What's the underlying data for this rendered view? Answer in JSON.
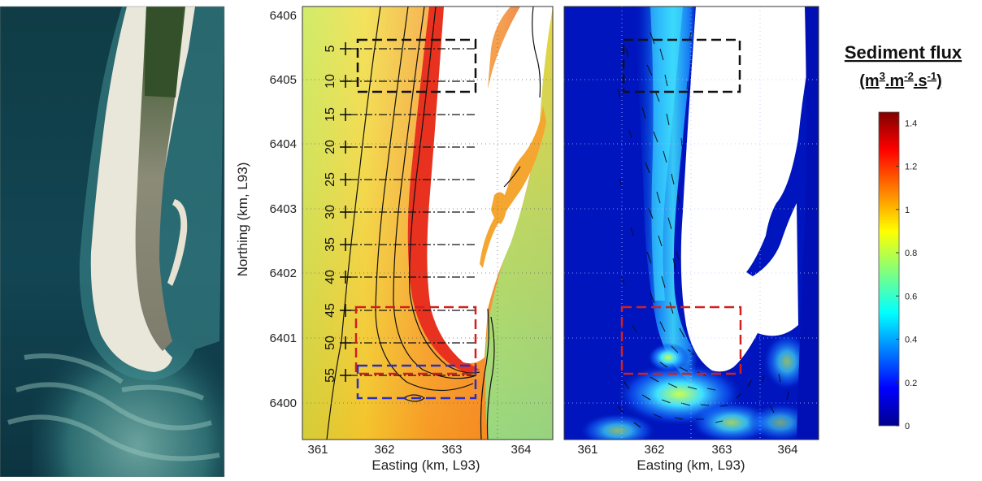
{
  "panels": {
    "axes": {
      "x_label": "Easting (km, L93)",
      "y_label": "Northing (km, L93)",
      "x_ticks": [
        "361",
        "362",
        "363",
        "364"
      ],
      "y_ticks": [
        "6400",
        "6401",
        "6402",
        "6403",
        "6404",
        "6405",
        "6406"
      ]
    },
    "transects": [
      "5",
      "10",
      "15",
      "20",
      "25",
      "30",
      "35",
      "40",
      "45",
      "50",
      "55"
    ],
    "boxes": [
      {
        "id": "north",
        "color": "#111111"
      },
      {
        "id": "middle",
        "color": "#d02020"
      },
      {
        "id": "south",
        "color": "#2b2fc0"
      }
    ]
  },
  "colorbar": {
    "title": "Sediment flux",
    "unit_prefix": "(m",
    "unit_m_exp": "3",
    "unit_mid": ".m",
    "unit_m2_exp": "-2",
    "unit_s": ".s",
    "unit_s_exp": "-1",
    "unit_suffix": ")",
    "ticks": [
      "0",
      "0.2",
      "0.4",
      "0.6",
      "0.8",
      "1",
      "1.2",
      "1.4"
    ],
    "range": [
      0,
      1.45
    ],
    "colors": {
      "low": "#00008f",
      "mid_low": "#00b4ff",
      "mid": "#9bff60",
      "mid_high": "#ffa500",
      "high": "#800000"
    }
  }
}
